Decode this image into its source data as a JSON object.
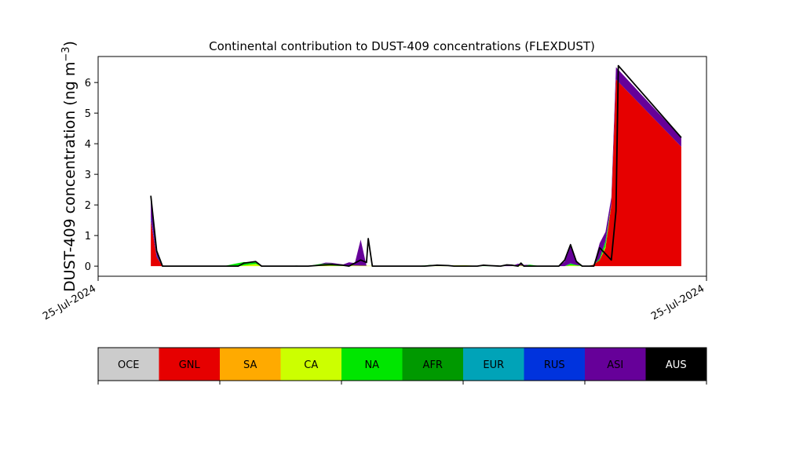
{
  "chart_data": {
    "type": "area",
    "title": "Continental contribution to DUST-409 concentrations (FLEXDUST)",
    "ylabel": "DUST-409 concentration (ng m",
    "ylabel_superscript": "−3",
    "ylabel_close": ")",
    "xlabel": "",
    "x_tick_labels": [
      "25-Jul-2024",
      "25-Jul-2024"
    ],
    "y_ticks": [
      0,
      1,
      2,
      3,
      4,
      5,
      6
    ],
    "ylim": [
      -0.33,
      6.85
    ],
    "x_index_range": [
      0,
      101
    ],
    "stacked": true,
    "grid": false,
    "legend": {
      "placement": "bottom",
      "entries": [
        {
          "name": "OCE",
          "color": "#cccccc",
          "text_color": "#000000"
        },
        {
          "name": "GNL",
          "color": "#e60000",
          "text_color": "#000000"
        },
        {
          "name": "SA",
          "color": "#ffaa00",
          "text_color": "#000000"
        },
        {
          "name": "CA",
          "color": "#ccff00",
          "text_color": "#000000"
        },
        {
          "name": "NA",
          "color": "#00e600",
          "text_color": "#000000"
        },
        {
          "name": "AFR",
          "color": "#009900",
          "text_color": "#000000"
        },
        {
          "name": "EUR",
          "color": "#00a3b8",
          "text_color": "#000000"
        },
        {
          "name": "RUS",
          "color": "#0033dd",
          "text_color": "#000000"
        },
        {
          "name": "ASI",
          "color": "#660099",
          "text_color": "#000000"
        },
        {
          "name": "AUS",
          "color": "#000000",
          "text_color": "#ffffff"
        }
      ]
    },
    "series": [
      {
        "name": "GNL",
        "points": [
          [
            5,
            1.5
          ],
          [
            6,
            0.3
          ],
          [
            7,
            0
          ],
          [
            80,
            0
          ],
          [
            81,
            0.05
          ],
          [
            82,
            0.2
          ],
          [
            83,
            0.6
          ],
          [
            84,
            2.0
          ],
          [
            84.8,
            6.1
          ],
          [
            96,
            3.9
          ]
        ]
      },
      {
        "name": "CA",
        "points": [
          [
            20,
            0
          ],
          [
            22,
            0.05
          ],
          [
            23,
            0.07
          ],
          [
            24,
            0
          ],
          [
            32,
            0
          ],
          [
            34,
            0.04
          ],
          [
            35,
            0.03
          ],
          [
            37,
            0.01
          ],
          [
            40,
            0.02
          ],
          [
            45,
            0
          ],
          [
            59,
            0.03
          ],
          [
            60,
            0.02
          ],
          [
            61,
            0
          ],
          [
            67,
            0
          ],
          [
            68,
            0.03
          ],
          [
            69,
            0.01
          ],
          [
            72,
            0
          ],
          [
            76,
            0
          ],
          [
            77,
            0.03
          ],
          [
            78,
            0.02
          ],
          [
            79,
            0
          ],
          [
            82,
            0
          ],
          [
            83,
            0.05
          ],
          [
            84,
            0.02
          ]
        ]
      },
      {
        "name": "NA",
        "points": [
          [
            17,
            0
          ],
          [
            18,
            0.02
          ],
          [
            19,
            0.06
          ],
          [
            20,
            0.1
          ],
          [
            21,
            0.11
          ],
          [
            22,
            0.05
          ],
          [
            23,
            0.07
          ],
          [
            24,
            0
          ],
          [
            32,
            0
          ],
          [
            33,
            0.02
          ],
          [
            34,
            0.03
          ],
          [
            36,
            0.04
          ],
          [
            37,
            0.02
          ],
          [
            38,
            0.02
          ],
          [
            40,
            0
          ],
          [
            51,
            0
          ],
          [
            54,
            0.02
          ],
          [
            56,
            0.01
          ],
          [
            57,
            0
          ],
          [
            61,
            0
          ],
          [
            62,
            0.03
          ],
          [
            63,
            0.02
          ],
          [
            65,
            0
          ],
          [
            69,
            0
          ],
          [
            70,
            0.04
          ],
          [
            71,
            0.02
          ],
          [
            72,
            0
          ],
          [
            76,
            0
          ],
          [
            77,
            0.05
          ],
          [
            78,
            0.02
          ],
          [
            79,
            0.01
          ],
          [
            81,
            0
          ],
          [
            82,
            0.05
          ],
          [
            83,
            0.15
          ],
          [
            84,
            0.02
          ]
        ]
      },
      {
        "name": "AFR",
        "points": [
          [
            28,
            0
          ],
          [
            29,
            0.01
          ],
          [
            30,
            0.02
          ],
          [
            31,
            0.01
          ],
          [
            32,
            0
          ],
          [
            34,
            0
          ],
          [
            35,
            0.02
          ],
          [
            36,
            0.03
          ],
          [
            37,
            0.01
          ],
          [
            38,
            0
          ],
          [
            52,
            0
          ],
          [
            53,
            0.01
          ],
          [
            54,
            0
          ],
          [
            62,
            0
          ],
          [
            63,
            0.01
          ],
          [
            64,
            0
          ]
        ]
      },
      {
        "name": "EUR",
        "points": [
          [
            76,
            0
          ],
          [
            77,
            0.01
          ],
          [
            78,
            0
          ],
          [
            82,
            0
          ],
          [
            83,
            0.02
          ],
          [
            84,
            0
          ]
        ]
      },
      {
        "name": "RUS",
        "points": [
          [
            5,
            0.1
          ],
          [
            6,
            0.05
          ],
          [
            7,
            0
          ]
        ]
      },
      {
        "name": "ASI",
        "points": [
          [
            5,
            0.7
          ],
          [
            6,
            0.2
          ],
          [
            7,
            0
          ],
          [
            34,
            0
          ],
          [
            35,
            0.03
          ],
          [
            36,
            0.02
          ],
          [
            37,
            0.04
          ],
          [
            38,
            0.02
          ],
          [
            39,
            0.1
          ],
          [
            40,
            0.08
          ],
          [
            41,
            0.85
          ],
          [
            42,
            0
          ],
          [
            65,
            0
          ],
          [
            66,
            0.02
          ],
          [
            67,
            0.01
          ],
          [
            68,
            0.05
          ],
          [
            69,
            0.03
          ],
          [
            70,
            0
          ],
          [
            75,
            0
          ],
          [
            76,
            0.15
          ],
          [
            77,
            0.65
          ],
          [
            78,
            0.15
          ],
          [
            79,
            0
          ],
          [
            81,
            0
          ],
          [
            82,
            0.5
          ],
          [
            83,
            0.3
          ],
          [
            84,
            0.2
          ],
          [
            84.8,
            0.4
          ],
          [
            96,
            0.3
          ]
        ]
      }
    ],
    "total_outline": [
      [
        5,
        2.3
      ],
      [
        6,
        0.5
      ],
      [
        7,
        0
      ],
      [
        20,
        0
      ],
      [
        21,
        0.1
      ],
      [
        23,
        0.15
      ],
      [
        24,
        0
      ],
      [
        32,
        0
      ],
      [
        34,
        0.03
      ],
      [
        36,
        0.05
      ],
      [
        38,
        0.03
      ],
      [
        39,
        0
      ],
      [
        40,
        0.1
      ],
      [
        41,
        0.2
      ],
      [
        42,
        0.12
      ],
      [
        42.3,
        0.9
      ],
      [
        43,
        0
      ],
      [
        52,
        0
      ],
      [
        54,
        0.03
      ],
      [
        56,
        0.02
      ],
      [
        57,
        0
      ],
      [
        61,
        0
      ],
      [
        62,
        0.03
      ],
      [
        63,
        0.02
      ],
      [
        65,
        0
      ],
      [
        66,
        0.04
      ],
      [
        67,
        0.03
      ],
      [
        68,
        0
      ],
      [
        68.5,
        0.1
      ],
      [
        69,
        0
      ],
      [
        75,
        0
      ],
      [
        76,
        0.2
      ],
      [
        77,
        0.7
      ],
      [
        78,
        0.15
      ],
      [
        79,
        0
      ],
      [
        81,
        0
      ],
      [
        82,
        0.6
      ],
      [
        83,
        0.4
      ],
      [
        84,
        0.2
      ],
      [
        84.8,
        1.8
      ],
      [
        85.2,
        6.55
      ],
      [
        96,
        4.2
      ]
    ]
  }
}
